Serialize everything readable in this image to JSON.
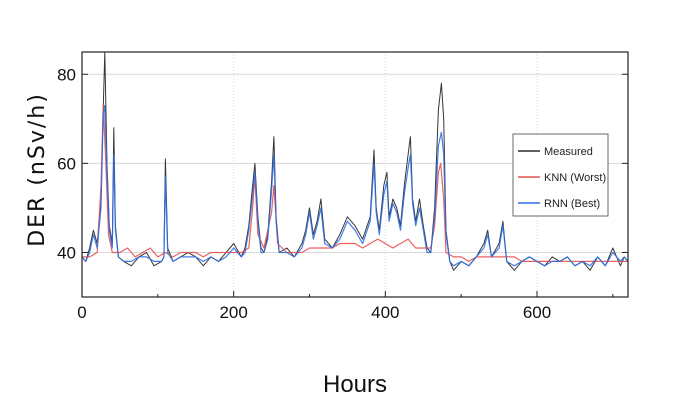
{
  "chart_data": {
    "type": "line",
    "xlabel": "Hours",
    "ylabel": "DER (nSv/h)",
    "xlim": [
      0,
      720
    ],
    "ylim": [
      30,
      85
    ],
    "xticks": [
      0,
      200,
      400,
      600
    ],
    "yticks": [
      40,
      60,
      80
    ],
    "grid": true,
    "legend_position": "right",
    "series": [
      {
        "name": "Measured",
        "color": "#2b2b2b",
        "points": [
          [
            0,
            39
          ],
          [
            5,
            38
          ],
          [
            10,
            41
          ],
          [
            15,
            45
          ],
          [
            20,
            42
          ],
          [
            25,
            52
          ],
          [
            28,
            72
          ],
          [
            30,
            85
          ],
          [
            33,
            60
          ],
          [
            36,
            46
          ],
          [
            40,
            42
          ],
          [
            42,
            68
          ],
          [
            44,
            46
          ],
          [
            48,
            39
          ],
          [
            55,
            38
          ],
          [
            65,
            37
          ],
          [
            75,
            39
          ],
          [
            85,
            40
          ],
          [
            95,
            37
          ],
          [
            105,
            38
          ],
          [
            108,
            39
          ],
          [
            110,
            61
          ],
          [
            113,
            41
          ],
          [
            120,
            38
          ],
          [
            130,
            39
          ],
          [
            140,
            40
          ],
          [
            150,
            39
          ],
          [
            160,
            37
          ],
          [
            170,
            39
          ],
          [
            180,
            38
          ],
          [
            190,
            40
          ],
          [
            200,
            42
          ],
          [
            210,
            39
          ],
          [
            215,
            41
          ],
          [
            220,
            46
          ],
          [
            225,
            55
          ],
          [
            228,
            60
          ],
          [
            232,
            48
          ],
          [
            236,
            41
          ],
          [
            240,
            40
          ],
          [
            245,
            44
          ],
          [
            250,
            56
          ],
          [
            253,
            66
          ],
          [
            256,
            48
          ],
          [
            260,
            40
          ],
          [
            270,
            41
          ],
          [
            280,
            39
          ],
          [
            290,
            42
          ],
          [
            295,
            45
          ],
          [
            300,
            50
          ],
          [
            305,
            44
          ],
          [
            310,
            47
          ],
          [
            315,
            52
          ],
          [
            320,
            43
          ],
          [
            330,
            41
          ],
          [
            340,
            44
          ],
          [
            350,
            48
          ],
          [
            360,
            46
          ],
          [
            370,
            43
          ],
          [
            380,
            48
          ],
          [
            385,
            63
          ],
          [
            388,
            50
          ],
          [
            392,
            45
          ],
          [
            398,
            55
          ],
          [
            402,
            58
          ],
          [
            405,
            48
          ],
          [
            410,
            52
          ],
          [
            415,
            50
          ],
          [
            420,
            46
          ],
          [
            425,
            55
          ],
          [
            430,
            62
          ],
          [
            433,
            66
          ],
          [
            436,
            52
          ],
          [
            440,
            47
          ],
          [
            445,
            52
          ],
          [
            450,
            46
          ],
          [
            455,
            41
          ],
          [
            460,
            40
          ],
          [
            465,
            50
          ],
          [
            470,
            72
          ],
          [
            474,
            78
          ],
          [
            477,
            70
          ],
          [
            480,
            45
          ],
          [
            485,
            38
          ],
          [
            490,
            36
          ],
          [
            500,
            38
          ],
          [
            510,
            37
          ],
          [
            520,
            39
          ],
          [
            530,
            42
          ],
          [
            535,
            45
          ],
          [
            540,
            39
          ],
          [
            550,
            42
          ],
          [
            555,
            47
          ],
          [
            560,
            38
          ],
          [
            570,
            36
          ],
          [
            580,
            38
          ],
          [
            590,
            39
          ],
          [
            600,
            38
          ],
          [
            610,
            37
          ],
          [
            620,
            39
          ],
          [
            630,
            38
          ],
          [
            640,
            39
          ],
          [
            650,
            37
          ],
          [
            660,
            38
          ],
          [
            670,
            36
          ],
          [
            680,
            39
          ],
          [
            690,
            37
          ],
          [
            700,
            41
          ],
          [
            705,
            39
          ],
          [
            710,
            37
          ],
          [
            715,
            39
          ],
          [
            720,
            38
          ]
        ]
      },
      {
        "name": "KNN (Worst)",
        "color": "#e8504f",
        "points": [
          [
            0,
            39
          ],
          [
            10,
            39
          ],
          [
            20,
            40
          ],
          [
            25,
            55
          ],
          [
            28,
            73
          ],
          [
            31,
            62
          ],
          [
            35,
            44
          ],
          [
            40,
            40
          ],
          [
            50,
            40
          ],
          [
            60,
            41
          ],
          [
            70,
            39
          ],
          [
            80,
            40
          ],
          [
            90,
            41
          ],
          [
            100,
            39
          ],
          [
            110,
            40
          ],
          [
            120,
            39
          ],
          [
            130,
            40
          ],
          [
            140,
            40
          ],
          [
            150,
            40
          ],
          [
            160,
            39
          ],
          [
            170,
            40
          ],
          [
            180,
            40
          ],
          [
            190,
            40
          ],
          [
            200,
            40
          ],
          [
            210,
            40
          ],
          [
            220,
            41
          ],
          [
            225,
            50
          ],
          [
            228,
            57
          ],
          [
            232,
            44
          ],
          [
            240,
            41
          ],
          [
            250,
            49
          ],
          [
            253,
            55
          ],
          [
            258,
            42
          ],
          [
            270,
            40
          ],
          [
            280,
            40
          ],
          [
            290,
            40
          ],
          [
            300,
            41
          ],
          [
            310,
            41
          ],
          [
            320,
            41
          ],
          [
            330,
            41
          ],
          [
            340,
            42
          ],
          [
            350,
            42
          ],
          [
            360,
            42
          ],
          [
            370,
            41
          ],
          [
            380,
            42
          ],
          [
            390,
            43
          ],
          [
            400,
            42
          ],
          [
            410,
            41
          ],
          [
            420,
            42
          ],
          [
            430,
            43
          ],
          [
            440,
            41
          ],
          [
            450,
            41
          ],
          [
            460,
            41
          ],
          [
            465,
            46
          ],
          [
            470,
            58
          ],
          [
            473,
            60
          ],
          [
            477,
            52
          ],
          [
            480,
            40
          ],
          [
            490,
            39
          ],
          [
            500,
            39
          ],
          [
            510,
            38
          ],
          [
            520,
            39
          ],
          [
            530,
            39
          ],
          [
            540,
            39
          ],
          [
            550,
            39
          ],
          [
            560,
            39
          ],
          [
            570,
            39
          ],
          [
            580,
            38
          ],
          [
            590,
            38
          ],
          [
            600,
            38
          ],
          [
            610,
            38
          ],
          [
            620,
            38
          ],
          [
            630,
            38
          ],
          [
            640,
            38
          ],
          [
            650,
            38
          ],
          [
            660,
            38
          ],
          [
            670,
            38
          ],
          [
            680,
            38
          ],
          [
            690,
            38
          ],
          [
            700,
            38
          ],
          [
            710,
            38
          ],
          [
            720,
            38
          ]
        ]
      },
      {
        "name": "RNN (Best)",
        "color": "#2f6fe0",
        "points": [
          [
            0,
            39
          ],
          [
            5,
            38
          ],
          [
            10,
            40
          ],
          [
            15,
            44
          ],
          [
            20,
            41
          ],
          [
            25,
            50
          ],
          [
            28,
            71
          ],
          [
            30,
            73
          ],
          [
            33,
            58
          ],
          [
            36,
            45
          ],
          [
            40,
            41
          ],
          [
            42,
            62
          ],
          [
            44,
            45
          ],
          [
            48,
            39
          ],
          [
            55,
            38
          ],
          [
            65,
            38
          ],
          [
            75,
            39
          ],
          [
            85,
            39
          ],
          [
            95,
            38
          ],
          [
            105,
            38
          ],
          [
            108,
            39
          ],
          [
            110,
            57
          ],
          [
            113,
            40
          ],
          [
            120,
            38
          ],
          [
            130,
            39
          ],
          [
            140,
            39
          ],
          [
            150,
            39
          ],
          [
            160,
            38
          ],
          [
            170,
            39
          ],
          [
            180,
            38
          ],
          [
            190,
            39
          ],
          [
            200,
            41
          ],
          [
            210,
            39
          ],
          [
            215,
            40
          ],
          [
            220,
            45
          ],
          [
            225,
            53
          ],
          [
            228,
            58
          ],
          [
            232,
            47
          ],
          [
            236,
            40
          ],
          [
            240,
            40
          ],
          [
            245,
            43
          ],
          [
            250,
            54
          ],
          [
            253,
            62
          ],
          [
            256,
            47
          ],
          [
            260,
            40
          ],
          [
            270,
            40
          ],
          [
            280,
            39
          ],
          [
            290,
            41
          ],
          [
            295,
            44
          ],
          [
            300,
            49
          ],
          [
            305,
            43
          ],
          [
            310,
            46
          ],
          [
            315,
            50
          ],
          [
            320,
            42
          ],
          [
            330,
            41
          ],
          [
            340,
            43
          ],
          [
            350,
            47
          ],
          [
            360,
            45
          ],
          [
            370,
            42
          ],
          [
            380,
            47
          ],
          [
            385,
            60
          ],
          [
            388,
            49
          ],
          [
            392,
            44
          ],
          [
            398,
            53
          ],
          [
            402,
            56
          ],
          [
            405,
            47
          ],
          [
            410,
            51
          ],
          [
            415,
            49
          ],
          [
            420,
            45
          ],
          [
            425,
            53
          ],
          [
            430,
            59
          ],
          [
            433,
            62
          ],
          [
            436,
            51
          ],
          [
            440,
            46
          ],
          [
            445,
            50
          ],
          [
            450,
            45
          ],
          [
            455,
            40
          ],
          [
            460,
            40
          ],
          [
            465,
            48
          ],
          [
            470,
            64
          ],
          [
            474,
            67
          ],
          [
            477,
            62
          ],
          [
            480,
            44
          ],
          [
            485,
            38
          ],
          [
            490,
            37
          ],
          [
            500,
            38
          ],
          [
            510,
            37
          ],
          [
            520,
            39
          ],
          [
            530,
            41
          ],
          [
            535,
            44
          ],
          [
            540,
            39
          ],
          [
            550,
            41
          ],
          [
            555,
            46
          ],
          [
            560,
            38
          ],
          [
            570,
            37
          ],
          [
            580,
            38
          ],
          [
            590,
            39
          ],
          [
            600,
            38
          ],
          [
            610,
            37
          ],
          [
            620,
            38
          ],
          [
            630,
            38
          ],
          [
            640,
            39
          ],
          [
            650,
            37
          ],
          [
            660,
            38
          ],
          [
            670,
            37
          ],
          [
            680,
            39
          ],
          [
            690,
            37
          ],
          [
            700,
            40
          ],
          [
            705,
            39
          ],
          [
            710,
            38
          ],
          [
            715,
            39
          ],
          [
            720,
            38
          ]
        ]
      }
    ]
  }
}
